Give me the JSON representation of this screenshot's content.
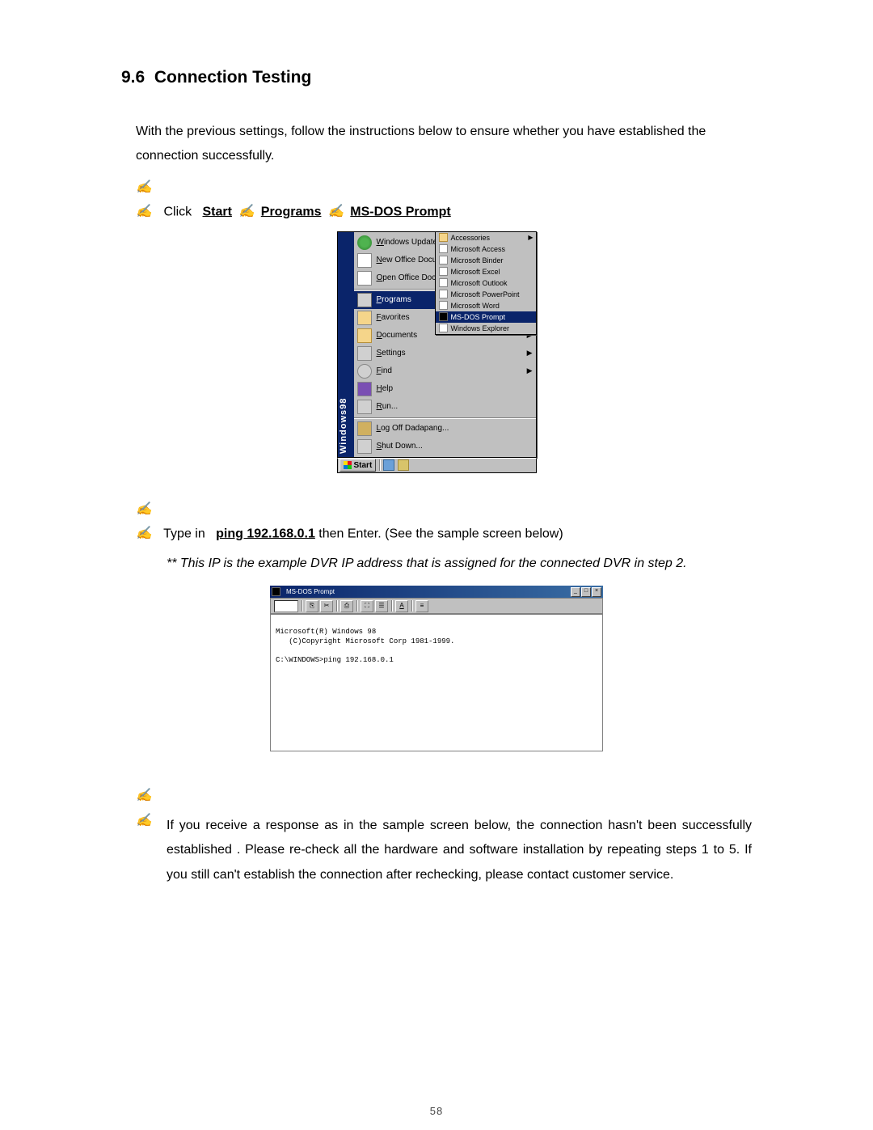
{
  "section": {
    "number": "9.6",
    "title": "Connection Testing"
  },
  "intro_text": "With the previous settings, follow the instructions below to ensure whether you have established the connection successfully.",
  "bullets": {
    "click_prefix": "Click",
    "start": "Start",
    "programs": "Programs",
    "msdos": "MS-DOS Prompt",
    "typein": "Type in",
    "ping_cmd": "ping 192.168.0.1",
    "then_enter": " then Enter. (See the sample screen below)",
    "ip_note": "** This IP is the example DVR IP address that is assigned for the connected DVR in step 2.",
    "response_para": "If you receive a response as in the sample screen below, the connection hasn't been successfully established . Please re-check all the hardware and software installation by repeating steps 1 to 5. If you still can't establish the connection after rechecking, please contact customer service."
  },
  "bullet_glyph": "✍✍",
  "arrow_glyph": "✍",
  "start_menu": {
    "side_label": "Windows98",
    "top_items": [
      {
        "label": "Windows Update",
        "icon": "globe"
      },
      {
        "label": "New Office Document",
        "icon": "doc"
      },
      {
        "label": "Open Office Document",
        "icon": "doc"
      }
    ],
    "main_items": [
      {
        "label": "Programs",
        "icon": "prog",
        "arrow": true,
        "highlight": true
      },
      {
        "label": "Favorites",
        "icon": "star",
        "arrow": true
      },
      {
        "label": "Documents",
        "icon": "folder",
        "arrow": true
      },
      {
        "label": "Settings",
        "icon": "gear",
        "arrow": true
      },
      {
        "label": "Find",
        "icon": "magnify",
        "arrow": true
      },
      {
        "label": "Help",
        "icon": "book"
      },
      {
        "label": "Run...",
        "icon": "run"
      }
    ],
    "bottom_items": [
      {
        "label": "Log Off Dadapang...",
        "icon": "key"
      },
      {
        "label": "Shut Down...",
        "icon": "shut"
      }
    ],
    "submenu_items": [
      {
        "label": "Accessories",
        "icon": "folder",
        "arrow": true
      },
      {
        "label": "Microsoft Access",
        "icon": "app"
      },
      {
        "label": "Microsoft Binder",
        "icon": "app"
      },
      {
        "label": "Microsoft Excel",
        "icon": "app"
      },
      {
        "label": "Microsoft Outlook",
        "icon": "app"
      },
      {
        "label": "Microsoft PowerPoint",
        "icon": "app"
      },
      {
        "label": "Microsoft Word",
        "icon": "app"
      },
      {
        "label": "MS-DOS Prompt",
        "icon": "dos",
        "highlight": true
      },
      {
        "label": "Windows Explorer",
        "icon": "app"
      }
    ],
    "taskbar": {
      "start": "Start"
    }
  },
  "dos_window": {
    "title": "MS-DOS Prompt",
    "toolbar_a_label": "A",
    "body_lines": [
      "",
      "Microsoft(R) Windows 98",
      "   (C)Copyright Microsoft Corp 1981-1999.",
      "",
      "C:\\WINDOWS>ping 192.168.0.1"
    ]
  },
  "page_number_fragment": "58"
}
